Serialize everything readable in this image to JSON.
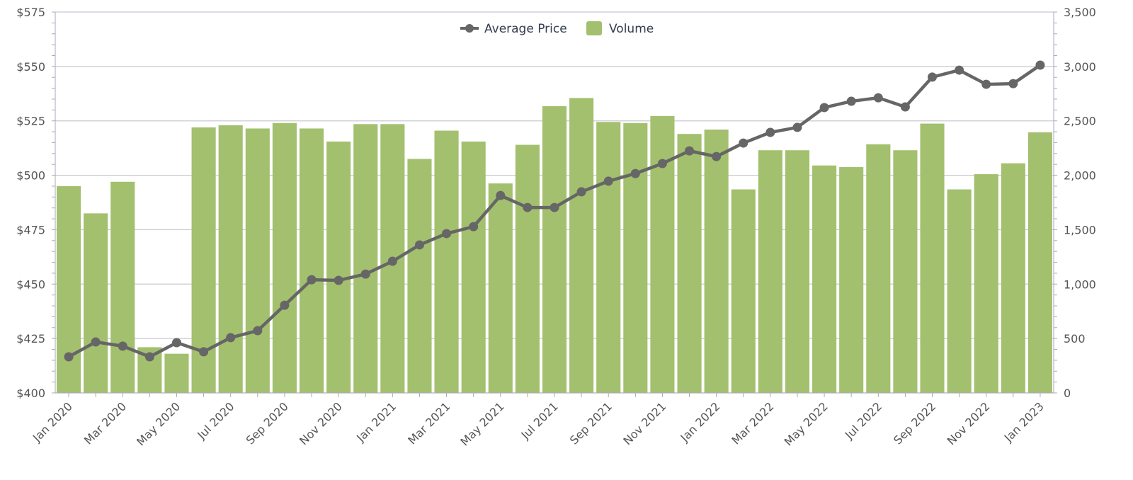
{
  "chart_data": {
    "type": "bar+line",
    "title": "",
    "categories": [
      "Jan 2020",
      "Feb 2020",
      "Mar 2020",
      "Apr 2020",
      "May 2020",
      "Jun 2020",
      "Jul 2020",
      "Aug 2020",
      "Sep 2020",
      "Oct 2020",
      "Nov 2020",
      "Dec 2020",
      "Jan 2021",
      "Feb 2021",
      "Mar 2021",
      "Apr 2021",
      "May 2021",
      "Jun 2021",
      "Jul 2021",
      "Aug 2021",
      "Sep 2021",
      "Oct 2021",
      "Nov 2021",
      "Dec 2021",
      "Jan 2022",
      "Feb 2022",
      "Mar 2022",
      "Apr 2022",
      "May 2022",
      "Jun 2022",
      "Jul 2022",
      "Aug 2022",
      "Sep 2022",
      "Oct 2022",
      "Nov 2022",
      "Dec 2022",
      "Jan 2023"
    ],
    "x_tick_labels": [
      "Jan 2020",
      "Mar 2020",
      "May 2020",
      "Jul 2020",
      "Sep 2020",
      "Nov 2020",
      "Jan 2021",
      "Mar 2021",
      "May 2021",
      "Jul 2021",
      "Sep 2021",
      "Nov 2021",
      "Jan 2022",
      "Mar 2022",
      "May 2022",
      "Jul 2022",
      "Sep 2022",
      "Nov 2022",
      "Jan 2023"
    ],
    "series": [
      {
        "name": "Volume",
        "type": "bar",
        "axis": "right",
        "color": "#a3c06e",
        "values": [
          1900,
          1650,
          1940,
          420,
          360,
          2440,
          2460,
          2430,
          2480,
          2430,
          2310,
          2470,
          2470,
          2150,
          2410,
          2310,
          1925,
          2280,
          2635,
          2710,
          2490,
          2480,
          2545,
          2380,
          2420,
          1870,
          2230,
          2230,
          2090,
          2075,
          2285,
          2230,
          2475,
          1870,
          2010,
          2110,
          2395
        ]
      },
      {
        "name": "Average Price",
        "type": "line",
        "axis": "left",
        "color": "#666666",
        "values": [
          416.6,
          423.4,
          421.5,
          416.6,
          423.1,
          418.9,
          425.4,
          428.6,
          440.3,
          452.0,
          451.7,
          454.6,
          460.5,
          468.0,
          473.2,
          476.4,
          490.7,
          485.2,
          485.2,
          492.4,
          497.3,
          500.8,
          505.4,
          511.2,
          508.6,
          514.8,
          519.7,
          522.0,
          531.1,
          534.0,
          535.6,
          531.4,
          545.1,
          548.3,
          541.8,
          542.1,
          550.6
        ]
      }
    ],
    "y_left": {
      "range": [
        400,
        575
      ],
      "ticks": [
        "$400",
        "$425",
        "$450",
        "$475",
        "$500",
        "$525",
        "$550",
        "$575"
      ]
    },
    "y_right": {
      "range": [
        0,
        3500
      ],
      "ticks": [
        "0",
        "500",
        "1,000",
        "1,500",
        "2,000",
        "2,500",
        "3,000",
        "3,500"
      ]
    },
    "grid": true,
    "legend": {
      "placement": "top-center",
      "items": [
        "Average Price",
        "Volume"
      ]
    }
  }
}
